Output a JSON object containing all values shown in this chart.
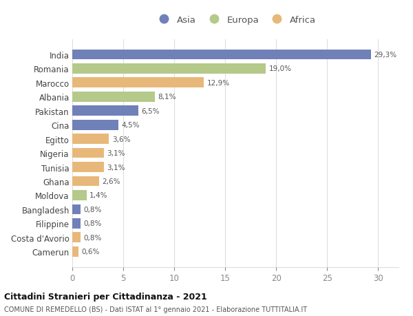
{
  "countries": [
    "India",
    "Romania",
    "Marocco",
    "Albania",
    "Pakistan",
    "Cina",
    "Egitto",
    "Nigeria",
    "Tunisia",
    "Ghana",
    "Moldova",
    "Bangladesh",
    "Filippine",
    "Costa d'Avorio",
    "Camerun"
  ],
  "values": [
    29.3,
    19.0,
    12.9,
    8.1,
    6.5,
    4.5,
    3.6,
    3.1,
    3.1,
    2.6,
    1.4,
    0.8,
    0.8,
    0.8,
    0.6
  ],
  "labels": [
    "29,3%",
    "19,0%",
    "12,9%",
    "8,1%",
    "6,5%",
    "4,5%",
    "3,6%",
    "3,1%",
    "3,1%",
    "2,6%",
    "1,4%",
    "0,8%",
    "0,8%",
    "0,8%",
    "0,6%"
  ],
  "continents": [
    "Asia",
    "Europa",
    "Africa",
    "Europa",
    "Asia",
    "Asia",
    "Africa",
    "Africa",
    "Africa",
    "Africa",
    "Europa",
    "Asia",
    "Asia",
    "Africa",
    "Africa"
  ],
  "colors": {
    "Asia": "#7080b8",
    "Europa": "#b5c98a",
    "Africa": "#e8b87a"
  },
  "legend_order": [
    "Asia",
    "Europa",
    "Africa"
  ],
  "xlim": [
    0,
    32
  ],
  "xticks": [
    0,
    5,
    10,
    15,
    20,
    25,
    30
  ],
  "title": "Cittadini Stranieri per Cittadinanza - 2021",
  "subtitle": "COMUNE DI REMEDELLO (BS) - Dati ISTAT al 1° gennaio 2021 - Elaborazione TUTTITALIA.IT",
  "background_color": "#ffffff",
  "bar_height": 0.72,
  "grid_color": "#dddddd"
}
